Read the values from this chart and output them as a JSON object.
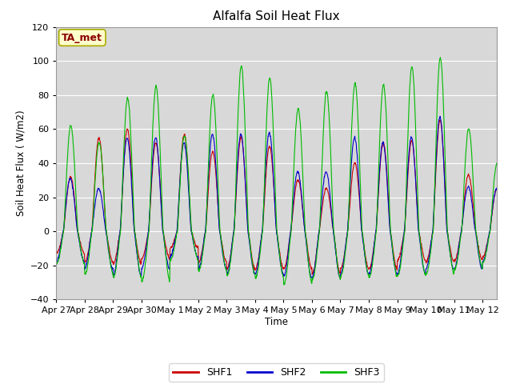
{
  "title": "Alfalfa Soil Heat Flux",
  "ylabel": "Soil Heat Flux (W/m2)",
  "xlabel": "Time",
  "ylim": [
    -40,
    120
  ],
  "annotation_text": "TA_met",
  "annotation_color": "#8B0000",
  "annotation_bg": "#FFFFCC",
  "annotation_border": "#AAAA00",
  "colors": {
    "SHF1": "#CC0000",
    "SHF2": "#0000CC",
    "SHF3": "#00BB00"
  },
  "background_color": "#FFFFFF",
  "plot_bg": "#D8D8D8",
  "xtick_labels": [
    "Apr 27",
    "Apr 28",
    "Apr 29",
    "Apr 30",
    "May 1",
    "May 2",
    "May 3",
    "May 4",
    "May 5",
    "May 6",
    "May 7",
    "May 8",
    "May 9",
    "May 10",
    "May 11",
    "May 12"
  ],
  "xtick_positions": [
    0,
    1,
    2,
    3,
    4,
    5,
    6,
    7,
    8,
    9,
    10,
    11,
    12,
    13,
    14,
    15
  ],
  "ytick_positions": [
    -40,
    -20,
    0,
    20,
    40,
    60,
    80,
    100,
    120
  ],
  "grid_color": "#FFFFFF",
  "n_points_per_day": 96,
  "n_days": 16,
  "daily_peaks_shf1": [
    32,
    55,
    60,
    52,
    57,
    47,
    55,
    50,
    30,
    25,
    40,
    52,
    53,
    65,
    33,
    25
  ],
  "daily_peaks_shf2": [
    31,
    25,
    55,
    55,
    52,
    57,
    57,
    58,
    35,
    35,
    55,
    52,
    55,
    67,
    26,
    25
  ],
  "daily_peaks_shf3": [
    62,
    52,
    78,
    85,
    56,
    80,
    97,
    90,
    72,
    82,
    87,
    86,
    97,
    102,
    60,
    40
  ],
  "daily_night_shf1": [
    -13,
    -18,
    -19,
    -16,
    -10,
    -18,
    -22,
    -22,
    -22,
    -25,
    -22,
    -22,
    -17,
    -18,
    -17,
    -15
  ],
  "daily_night_shf2": [
    -18,
    -22,
    -26,
    -22,
    -15,
    -22,
    -25,
    -25,
    -27,
    -27,
    -25,
    -25,
    -25,
    -22,
    -22,
    -18
  ],
  "daily_night_shf3": [
    -19,
    -25,
    -27,
    -29,
    -17,
    -23,
    -26,
    -27,
    -31,
    -28,
    -26,
    -27,
    -26,
    -25,
    -22,
    -18
  ]
}
